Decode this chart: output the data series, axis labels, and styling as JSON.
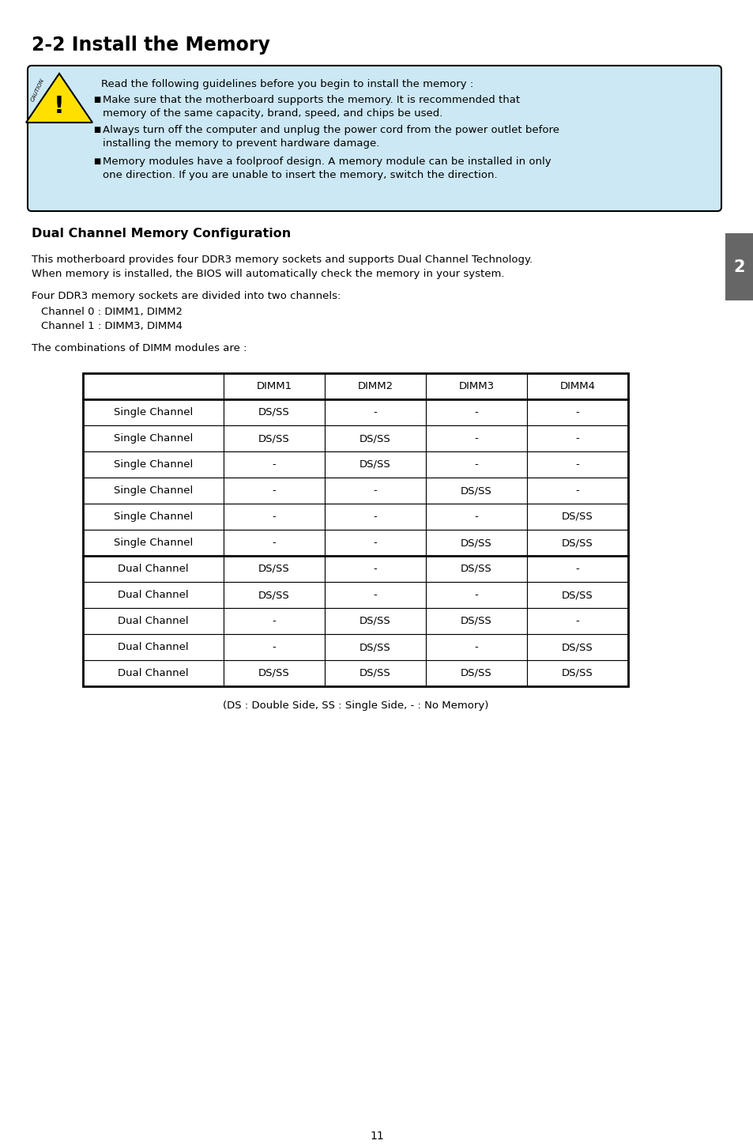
{
  "title": "2-2 Install the Memory",
  "page_number": "11",
  "bg_color": "#ffffff",
  "caution_box_color": "#cce8f4",
  "caution_box_border": "#000000",
  "caution_text_intro": "Read the following guidelines before you begin to install the memory :",
  "caution_bullets": [
    "Make sure that the motherboard supports the memory. It is recommended that\nmemory of the same capacity, brand, speed, and chips be used.",
    "Always turn off the computer and unplug the power cord from the power outlet before\ninstalling the memory to prevent hardware damage.",
    "Memory modules have a foolproof design. A memory module can be installed in only\none direction. If you are unable to insert the memory, switch the direction."
  ],
  "section_title": "Dual Channel Memory Configuration",
  "para1a": "This motherboard provides four DDR3 memory sockets and supports Dual Channel Technology.",
  "para1b": "When memory is installed, the BIOS will automatically check the memory in your system.",
  "para2": "Four DDR3 memory sockets are divided into two channels:",
  "channels": [
    "Channel 0 : DIMM1, DIMM2",
    "Channel 1 : DIMM3, DIMM4"
  ],
  "para3": "The combinations of DIMM modules are :",
  "table_headers": [
    "",
    "DIMM1",
    "DIMM2",
    "DIMM3",
    "DIMM4"
  ],
  "table_rows": [
    [
      "Single Channel",
      "DS/SS",
      "-",
      "-",
      "-"
    ],
    [
      "Single Channel",
      "DS/SS",
      "DS/SS",
      "-",
      "-"
    ],
    [
      "Single Channel",
      "-",
      "DS/SS",
      "-",
      "-"
    ],
    [
      "Single Channel",
      "-",
      "-",
      "DS/SS",
      "-"
    ],
    [
      "Single Channel",
      "-",
      "-",
      "-",
      "DS/SS"
    ],
    [
      "Single Channel",
      "-",
      "-",
      "DS/SS",
      "DS/SS"
    ],
    [
      "Dual Channel",
      "DS/SS",
      "-",
      "DS/SS",
      "-"
    ],
    [
      "Dual Channel",
      "DS/SS",
      "-",
      "-",
      "DS/SS"
    ],
    [
      "Dual Channel",
      "-",
      "DS/SS",
      "DS/SS",
      "-"
    ],
    [
      "Dual Channel",
      "-",
      "DS/SS",
      "-",
      "DS/SS"
    ],
    [
      "Dual Channel",
      "DS/SS",
      "DS/SS",
      "DS/SS",
      "DS/SS"
    ]
  ],
  "table_footnote": "(DS : Double Side, SS : Single Side, - : No Memory)",
  "sidebar_color": "#666666",
  "sidebar_text": "2",
  "sidebar_text_color": "#ffffff"
}
